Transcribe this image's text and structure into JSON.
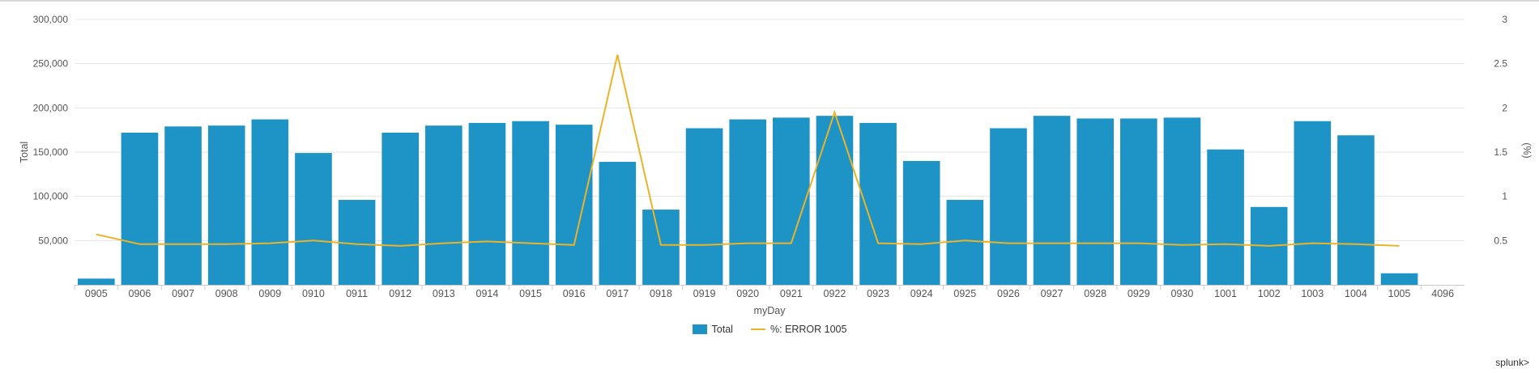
{
  "chart_data": {
    "type": "bar",
    "categories": [
      "0905",
      "0906",
      "0907",
      "0908",
      "0909",
      "0910",
      "0911",
      "0912",
      "0913",
      "0914",
      "0915",
      "0916",
      "0917",
      "0918",
      "0919",
      "0920",
      "0921",
      "0922",
      "0923",
      "0924",
      "0925",
      "0926",
      "0927",
      "0928",
      "0929",
      "0930",
      "1001",
      "1002",
      "1003",
      "1004",
      "1005",
      "4096"
    ],
    "series": [
      {
        "name": "Total",
        "type": "bar",
        "axis": "left",
        "color": "#1e93c6",
        "values": [
          7000,
          172000,
          179000,
          180000,
          187000,
          149000,
          96000,
          172000,
          180000,
          183000,
          185000,
          181000,
          139000,
          85000,
          177000,
          187000,
          189000,
          191000,
          183000,
          140000,
          96000,
          177000,
          191000,
          188000,
          188000,
          189000,
          153000,
          88000,
          185000,
          169000,
          13000,
          0
        ]
      },
      {
        "name": "%: ERROR 1005",
        "type": "line",
        "axis": "right",
        "color": "#ebb328",
        "values": [
          0.57,
          0.46,
          0.46,
          0.46,
          0.47,
          0.5,
          0.46,
          0.44,
          0.47,
          0.49,
          0.47,
          0.45,
          2.6,
          0.45,
          0.45,
          0.47,
          0.47,
          1.95,
          0.47,
          0.46,
          0.5,
          0.47,
          0.47,
          0.47,
          0.47,
          0.45,
          0.46,
          0.44,
          0.47,
          0.46,
          0.44,
          null
        ]
      }
    ],
    "xlabel": "myDay",
    "ylabel": "Total",
    "y2label": "(%)",
    "ylim": [
      0,
      300000
    ],
    "y2lim": [
      0,
      3
    ],
    "yticks": [
      "50,000",
      "100,000",
      "150,000",
      "200,000",
      "250,000",
      "300,000"
    ],
    "yticks_values": [
      50000,
      100000,
      150000,
      200000,
      250000,
      300000
    ],
    "y2ticks": [
      "0.5",
      "1",
      "1.5",
      "2",
      "2.5",
      "3"
    ],
    "y2ticks_values": [
      0.5,
      1,
      1.5,
      2,
      2.5,
      3
    ],
    "grid": true,
    "legend": "bottom-center"
  },
  "legend": {
    "total_label": "Total",
    "error_label": "%: ERROR 1005"
  },
  "branding": "splunk>"
}
